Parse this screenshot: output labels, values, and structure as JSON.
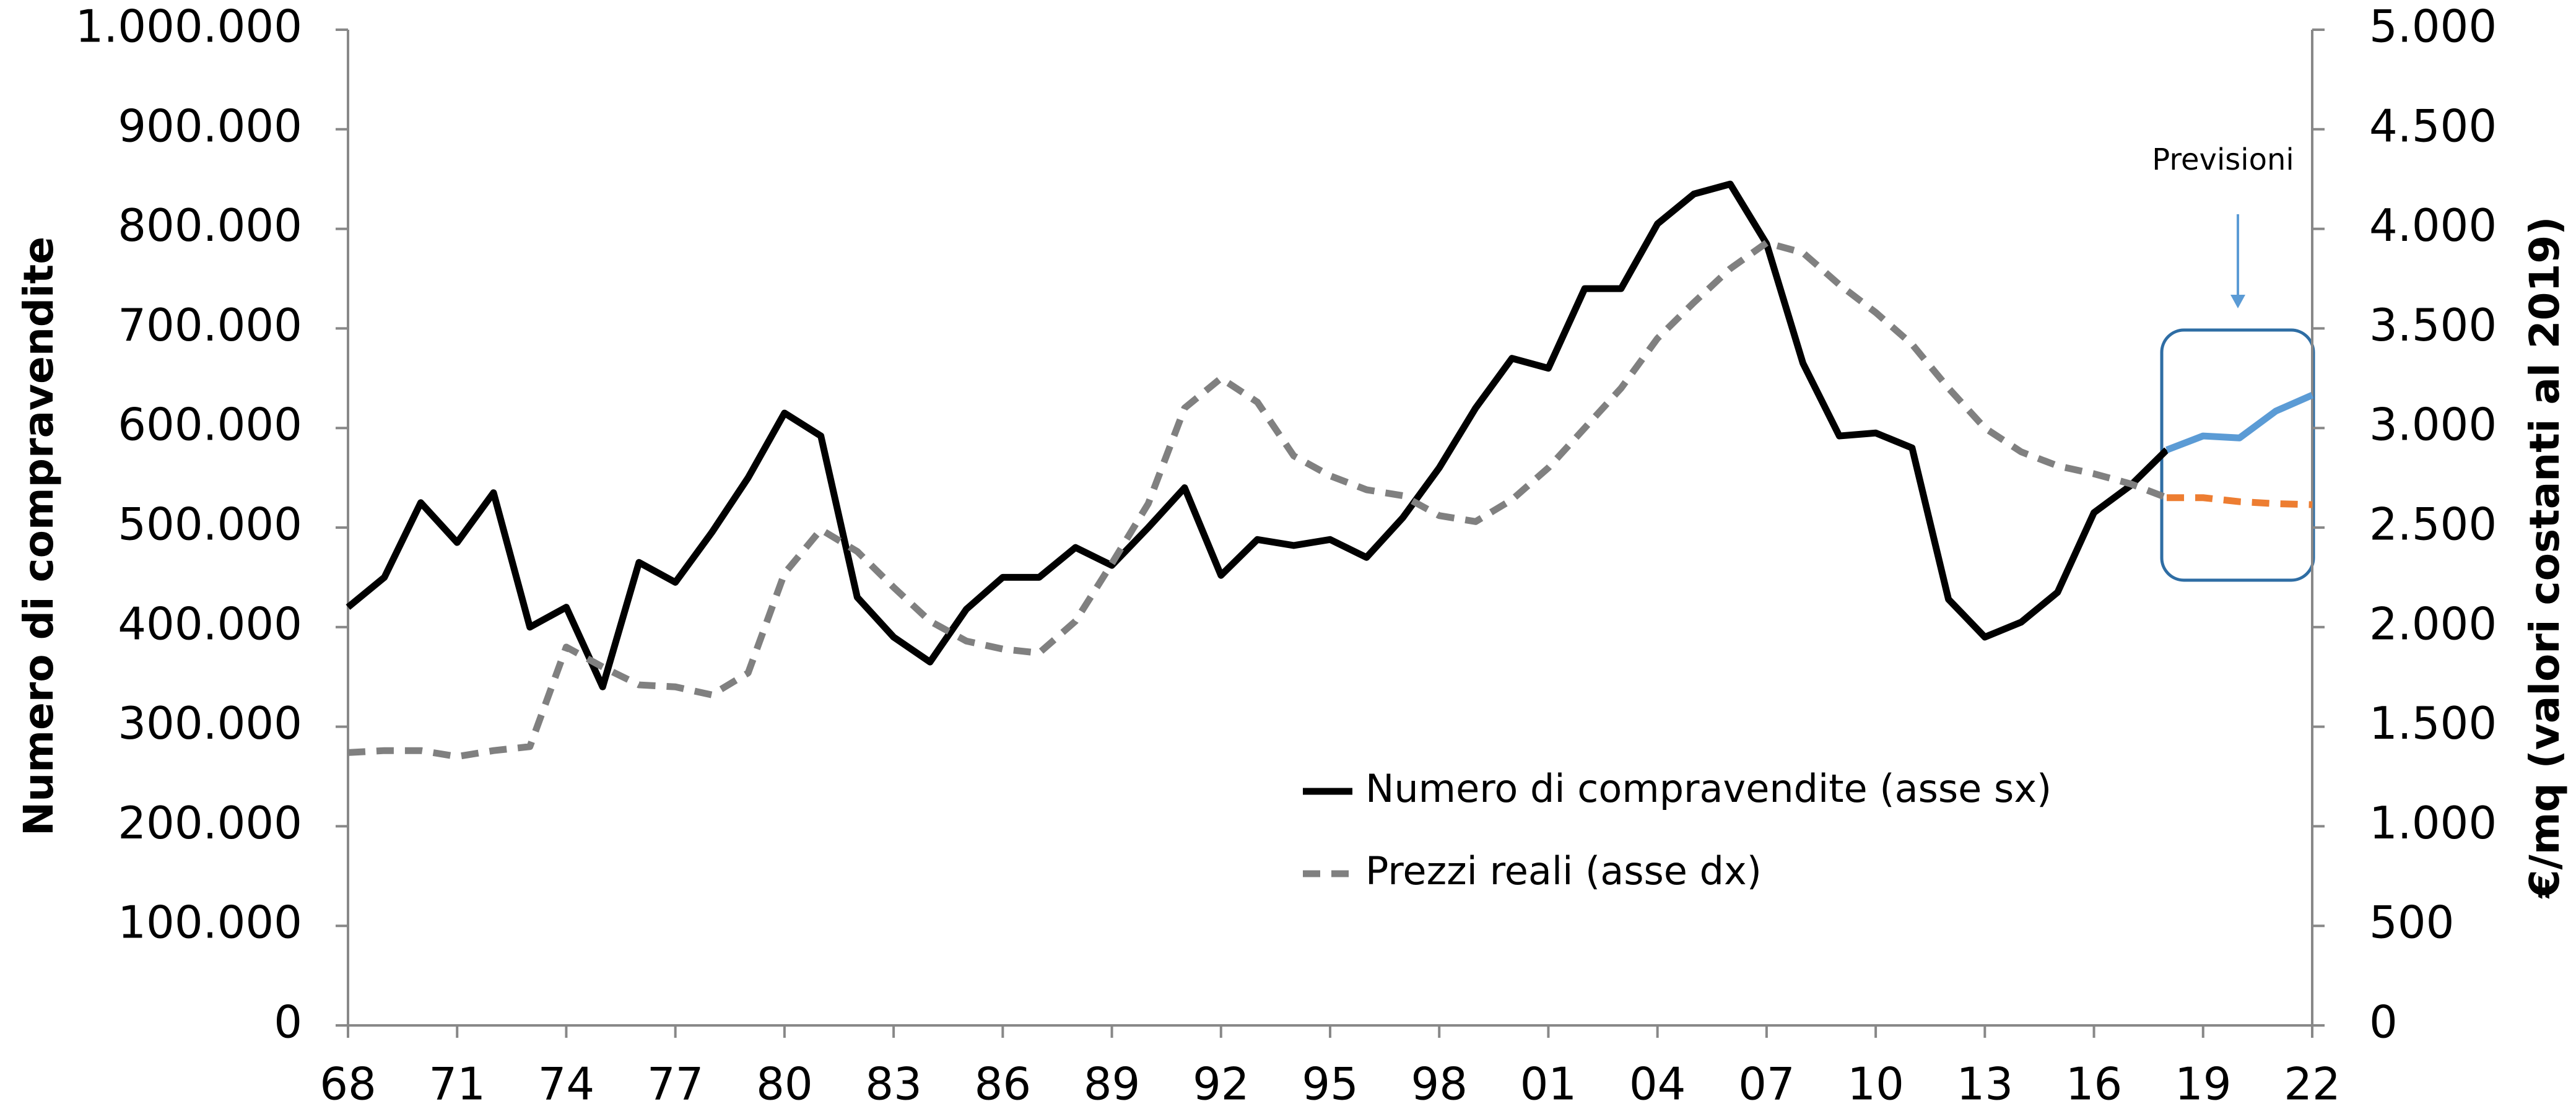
{
  "chart_data": {
    "type": "line",
    "categories": [
      "68",
      null,
      null,
      "71",
      null,
      null,
      "74",
      null,
      null,
      "77",
      null,
      null,
      "80",
      null,
      null,
      "83",
      null,
      null,
      "86",
      null,
      null,
      "89",
      null,
      null,
      "92",
      null,
      null,
      "95",
      null,
      null,
      "98",
      null,
      null,
      "01",
      null,
      null,
      "04",
      null,
      null,
      "07",
      null,
      null,
      "10",
      null,
      null,
      "13",
      null,
      null,
      "16",
      null,
      null,
      "19",
      null,
      null,
      "22"
    ],
    "y_label": "Numero di compravendite",
    "y2_label": "€/mq (valori costanti al 2019)",
    "annotation": "Previsioni",
    "ylim": [
      0,
      1000000
    ],
    "yticks": [
      0,
      {
        "value": 100000,
        "label": "100.000"
      },
      {
        "value": 200000,
        "label": "200.000"
      },
      {
        "value": 300000,
        "label": "300.000"
      },
      {
        "value": 400000,
        "label": "400.000"
      },
      {
        "value": 500000,
        "label": "500.000"
      },
      {
        "value": 600000,
        "label": "600.000"
      },
      {
        "value": 700000,
        "label": "700.000"
      },
      {
        "value": 800000,
        "label": "800.000"
      },
      {
        "value": 900000,
        "label": "900.000"
      },
      {
        "value": 1000000,
        "label": "1.000.000"
      }
    ],
    "y2lim": [
      0,
      5000
    ],
    "y2ticks": [
      0,
      500,
      {
        "value": 1000,
        "label": "1.000"
      },
      {
        "value": 1500,
        "label": "1.500"
      },
      {
        "value": 2000,
        "label": "2.000"
      },
      {
        "value": 2500,
        "label": "2.500"
      },
      {
        "value": 3000,
        "label": "3.000"
      },
      {
        "value": 3500,
        "label": "3.500"
      },
      {
        "value": 4000,
        "label": "4.000"
      },
      {
        "value": 4500,
        "label": "4.500"
      },
      {
        "value": 5000,
        "label": "5.000"
      }
    ],
    "grid": false,
    "series": [
      {
        "name": "Numero di compravendite (asse sx)",
        "color": "#000000",
        "dashed": false,
        "axis": "y",
        "forecast_color": "#5b9bd5",
        "values": [
          420000,
          450000,
          525000,
          485000,
          535000,
          400000,
          420000,
          340000,
          465000,
          445000,
          495000,
          550000,
          615000,
          592000,
          430000,
          390000,
          365000,
          418000,
          450000,
          450000,
          480000,
          462000,
          500000,
          540000,
          452000,
          488000,
          482000,
          488000,
          470000,
          510000,
          560000,
          620000,
          670000,
          660000,
          740000,
          740000,
          805000,
          835000,
          845000,
          785000,
          665000,
          592000,
          595000,
          580000,
          428000,
          390000,
          405000,
          435000,
          515000,
          542000,
          578000,
          null,
          null,
          null,
          null
        ],
        "forecast_values": [
          null,
          null,
          null,
          null,
          null,
          null,
          null,
          null,
          null,
          null,
          null,
          null,
          null,
          null,
          null,
          null,
          null,
          null,
          null,
          null,
          null,
          null,
          null,
          null,
          null,
          null,
          null,
          null,
          null,
          null,
          null,
          null,
          null,
          null,
          null,
          null,
          null,
          null,
          null,
          null,
          null,
          null,
          null,
          null,
          null,
          null,
          null,
          null,
          null,
          null,
          578000,
          592000,
          590000,
          617000,
          633000
        ]
      },
      {
        "name": "Prezzi reali (asse dx)",
        "color": "#808080",
        "dashed": true,
        "axis": "y2",
        "forecast_color": "#ed7d31",
        "values": [
          1370,
          1380,
          1380,
          1350,
          1380,
          1400,
          1900,
          1800,
          1710,
          1700,
          1660,
          1770,
          2270,
          2490,
          2380,
          2200,
          2030,
          1930,
          1890,
          1870,
          2030,
          2320,
          2620,
          3100,
          3250,
          3130,
          2860,
          2760,
          2690,
          2660,
          2560,
          2530,
          2640,
          2800,
          3000,
          3200,
          3450,
          3630,
          3800,
          3930,
          3880,
          3720,
          3580,
          3420,
          3200,
          3000,
          2880,
          2810,
          2770,
          2720,
          2650,
          null,
          null,
          null,
          null
        ],
        "forecast_values": [
          null,
          null,
          null,
          null,
          null,
          null,
          null,
          null,
          null,
          null,
          null,
          null,
          null,
          null,
          null,
          null,
          null,
          null,
          null,
          null,
          null,
          null,
          null,
          null,
          null,
          null,
          null,
          null,
          null,
          null,
          null,
          null,
          null,
          null,
          null,
          null,
          null,
          null,
          null,
          null,
          null,
          null,
          null,
          null,
          null,
          null,
          null,
          null,
          null,
          null,
          2650,
          2650,
          2630,
          2620,
          2615
        ]
      }
    ]
  }
}
